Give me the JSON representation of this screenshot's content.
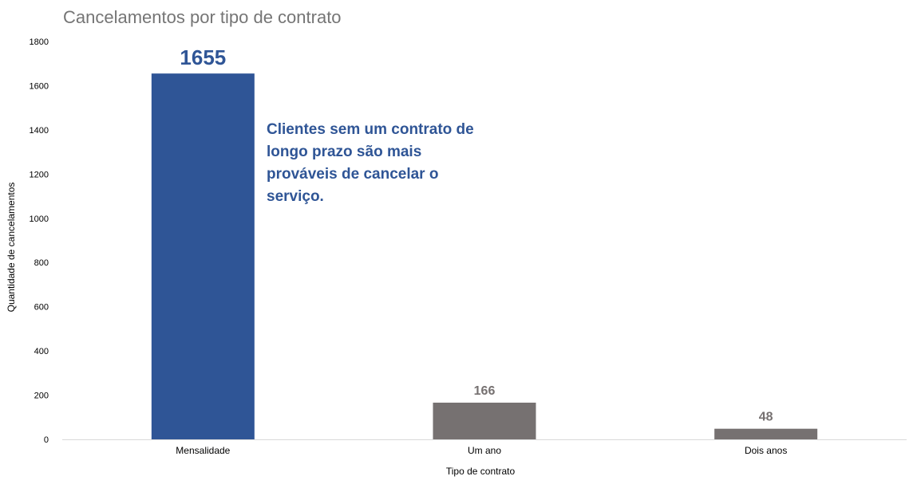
{
  "chart_data": {
    "type": "bar",
    "title": "Cancelamentos por tipo de contrato",
    "xlabel": "Tipo de contrato",
    "ylabel": "Quantidade de cancelamentos",
    "categories": [
      "Mensalidade",
      "Um ano",
      "Dois anos"
    ],
    "values": [
      1655,
      166,
      48
    ],
    "data_labels": [
      "1655",
      "166",
      "48"
    ],
    "colors": [
      "#2f5596",
      "#767171",
      "#767171"
    ],
    "label_colors": [
      "#2f5596",
      "#767171",
      "#767171"
    ],
    "ylim": [
      0,
      1800
    ],
    "yticks": [
      0,
      200,
      400,
      600,
      800,
      1000,
      1200,
      1400,
      1600,
      1800
    ],
    "grid": false,
    "legend": "none",
    "annotation": {
      "text": "Clientes sem um contrato de longo prazo são mais prováveis de cancelar o serviço.",
      "color": "#2f5596"
    }
  }
}
